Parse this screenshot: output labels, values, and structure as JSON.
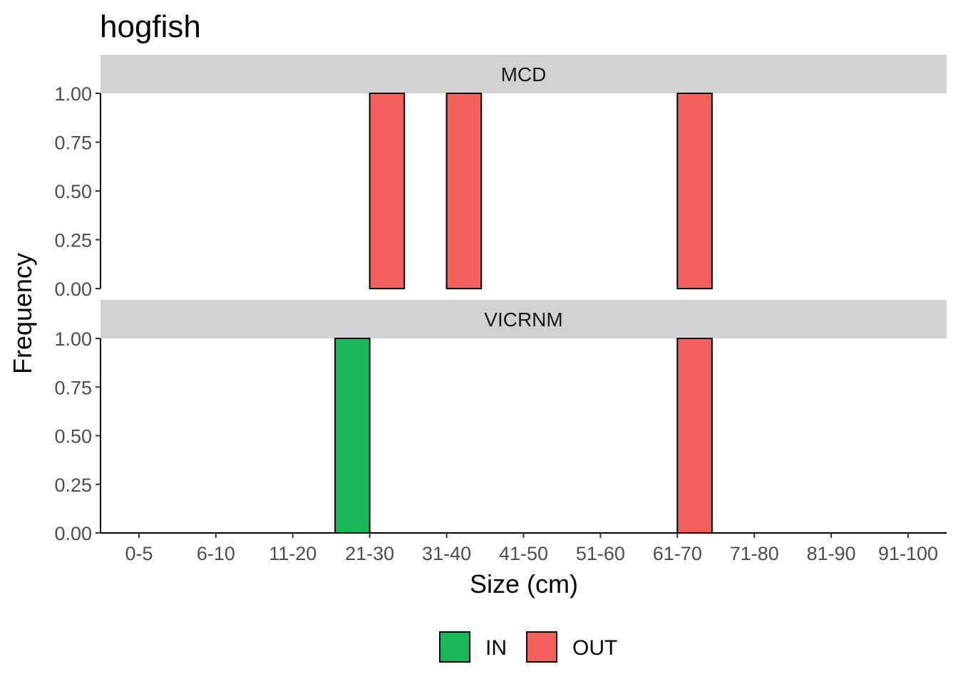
{
  "chart_data": {
    "type": "bar",
    "title": "hogfish",
    "xlabel": "Size (cm)",
    "ylabel": "Frequency",
    "ylim": [
      0,
      1
    ],
    "yticks": [
      "0.00",
      "0.25",
      "0.50",
      "0.75",
      "1.00"
    ],
    "categories": [
      "0-5",
      "6-10",
      "11-20",
      "21-30",
      "31-40",
      "41-50",
      "51-60",
      "61-70",
      "71-80",
      "81-90",
      "91-100"
    ],
    "series_names": [
      "IN",
      "OUT"
    ],
    "colors": {
      "IN": "#1bb858",
      "OUT": "#f3615c"
    },
    "legend_position": "bottom",
    "grid": false,
    "facets": [
      {
        "label": "MCD",
        "series": [
          {
            "name": "IN",
            "values": [
              0,
              0,
              0,
              0,
              0,
              0,
              0,
              0,
              0,
              0,
              0
            ]
          },
          {
            "name": "OUT",
            "values": [
              0,
              0,
              0,
              1,
              1,
              0,
              0,
              1,
              0,
              0,
              0
            ]
          }
        ]
      },
      {
        "label": "VICRNM",
        "series": [
          {
            "name": "IN",
            "values": [
              0,
              0,
              0,
              1,
              0,
              0,
              0,
              0,
              0,
              0,
              0
            ]
          },
          {
            "name": "OUT",
            "values": [
              0,
              0,
              0,
              0,
              0,
              0,
              0,
              1,
              0,
              0,
              0
            ]
          }
        ]
      }
    ]
  }
}
